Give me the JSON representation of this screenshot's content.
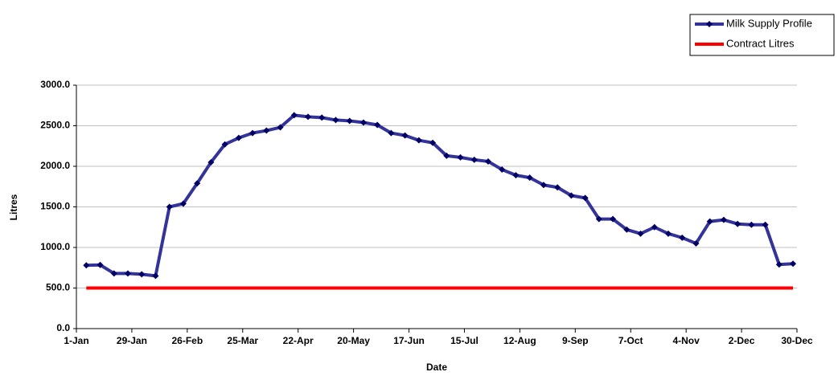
{
  "chart_data": {
    "type": "line",
    "x_label": "Date",
    "y_label": "Litres",
    "xlim": [
      1,
      365
    ],
    "xticks": [
      {
        "value": 1,
        "label": "1-Jan"
      },
      {
        "value": 29,
        "label": "29-Jan"
      },
      {
        "value": 57,
        "label": "26-Feb"
      },
      {
        "value": 85,
        "label": "25-Mar"
      },
      {
        "value": 113,
        "label": "22-Apr"
      },
      {
        "value": 141,
        "label": "20-May"
      },
      {
        "value": 169,
        "label": "17-Jun"
      },
      {
        "value": 197,
        "label": "15-Jul"
      },
      {
        "value": 225,
        "label": "12-Aug"
      },
      {
        "value": 253,
        "label": "9-Sep"
      },
      {
        "value": 281,
        "label": "7-Oct"
      },
      {
        "value": 309,
        "label": "4-Nov"
      },
      {
        "value": 337,
        "label": "2-Dec"
      },
      {
        "value": 365,
        "label": "30-Dec"
      }
    ],
    "ylim": [
      0,
      3000
    ],
    "yticks": [
      {
        "value": 0,
        "label": "0.0"
      },
      {
        "value": 500,
        "label": "500.0"
      },
      {
        "value": 1000,
        "label": "1000.0"
      },
      {
        "value": 1500,
        "label": "1500.0"
      },
      {
        "value": 2000,
        "label": "2000.0"
      },
      {
        "value": 2500,
        "label": "2500.0"
      },
      {
        "value": 3000,
        "label": "3000.0"
      }
    ],
    "grid": true,
    "legend": "top-right",
    "x": [
      6,
      13,
      20,
      27,
      34,
      41,
      48,
      55,
      62,
      69,
      76,
      83,
      90,
      97,
      104,
      111,
      118,
      125,
      132,
      139,
      146,
      153,
      160,
      167,
      174,
      181,
      188,
      195,
      202,
      209,
      216,
      223,
      230,
      237,
      244,
      251,
      258,
      265,
      272,
      279,
      286,
      293,
      300,
      307,
      314,
      321,
      328,
      335,
      342,
      349,
      356,
      363
    ],
    "series": [
      {
        "name": "Milk Supply Profile",
        "color": "#333399",
        "marker": true,
        "values": [
          780,
          785,
          680,
          680,
          670,
          650,
          1500,
          1540,
          1790,
          2050,
          2270,
          2350,
          2410,
          2440,
          2480,
          2630,
          2610,
          2600,
          2570,
          2560,
          2540,
          2510,
          2410,
          2380,
          2320,
          2290,
          2130,
          2110,
          2080,
          2060,
          1960,
          1890,
          1860,
          1770,
          1740,
          1640,
          1610,
          1350,
          1350,
          1220,
          1170,
          1250,
          1170,
          1120,
          1050,
          1320,
          1340,
          1290,
          1280,
          1280,
          790,
          800
        ]
      },
      {
        "name": "Contract Litres",
        "color": "#ff0000",
        "marker": false,
        "values": [
          500,
          500,
          500,
          500,
          500,
          500,
          500,
          500,
          500,
          500,
          500,
          500,
          500,
          500,
          500,
          500,
          500,
          500,
          500,
          500,
          500,
          500,
          500,
          500,
          500,
          500,
          500,
          500,
          500,
          500,
          500,
          500,
          500,
          500,
          500,
          500,
          500,
          500,
          500,
          500,
          500,
          500,
          500,
          500,
          500,
          500,
          500,
          500,
          500,
          500,
          500,
          500
        ]
      }
    ]
  }
}
